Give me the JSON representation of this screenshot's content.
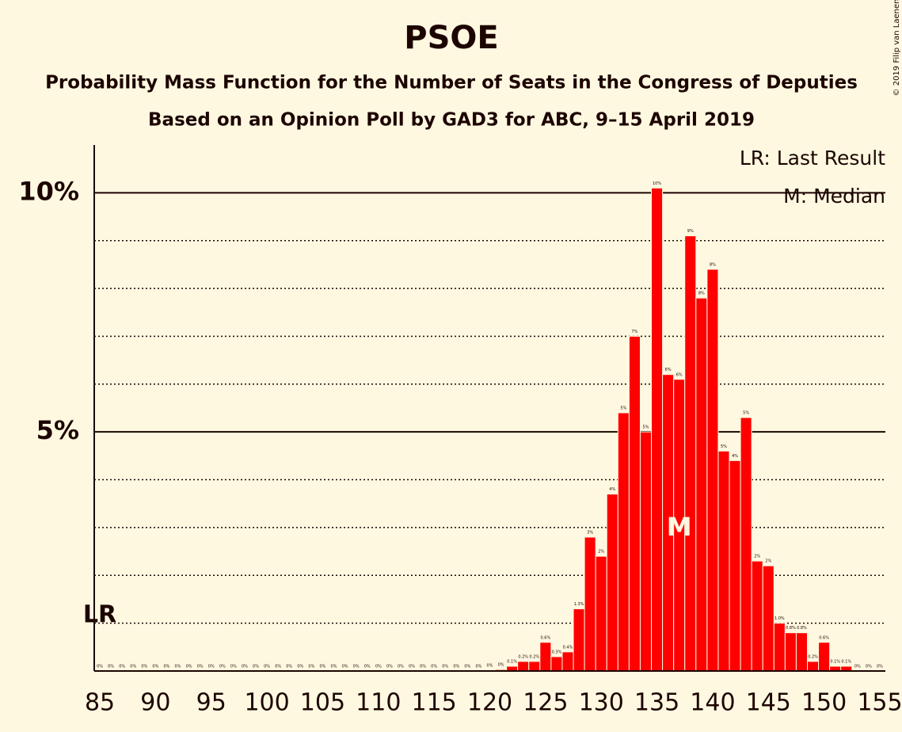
{
  "chart_data": {
    "type": "bar",
    "title": "PSOE",
    "subtitle": "Probability Mass Function for the Number of Seats in the Congress of Deputies",
    "subtitle2": "Based on an Opinion Poll by GAD3 for ABC, 9–15 April 2019",
    "copyright": "© 2019 Filip van Laenen",
    "legend": [
      "LR: Last Result",
      "M: Median"
    ],
    "legend_position": "top-right",
    "color": "#ff0000",
    "x": [
      85,
      86,
      87,
      88,
      89,
      90,
      91,
      92,
      93,
      94,
      95,
      96,
      97,
      98,
      99,
      100,
      101,
      102,
      103,
      104,
      105,
      106,
      107,
      108,
      109,
      110,
      111,
      112,
      113,
      114,
      115,
      116,
      117,
      118,
      119,
      120,
      121,
      122,
      123,
      124,
      125,
      126,
      127,
      128,
      129,
      130,
      131,
      132,
      133,
      134,
      135,
      136,
      137,
      138,
      139,
      140,
      141,
      142,
      143,
      144,
      145,
      146,
      147,
      148,
      149,
      150,
      151,
      152,
      153,
      154,
      155
    ],
    "values": [
      0,
      0,
      0,
      0,
      0,
      0,
      0,
      0,
      0,
      0,
      0,
      0,
      0,
      0,
      0,
      0,
      0,
      0,
      0,
      0,
      0,
      0,
      0,
      0,
      0,
      0,
      0,
      0,
      0,
      0,
      0,
      0,
      0,
      0,
      0,
      0.02,
      0.03,
      0.1,
      0.2,
      0.2,
      0.6,
      0.3,
      0.4,
      1.3,
      2.8,
      2.4,
      3.7,
      5.4,
      7.0,
      5.0,
      10.1,
      6.2,
      6.1,
      9.1,
      7.8,
      8.4,
      4.6,
      4.4,
      5.3,
      2.3,
      2.2,
      1.0,
      0.8,
      0.8,
      0.2,
      0.6,
      0.1,
      0.1,
      0,
      0,
      0
    ],
    "value_labels": [
      "0%",
      "0%",
      "0%",
      "0%",
      "0%",
      "0%",
      "0%",
      "0%",
      "0%",
      "0%",
      "0%",
      "0%",
      "0%",
      "0%",
      "0%",
      "0%",
      "0%",
      "0%",
      "0%",
      "0%",
      "0%",
      "0%",
      "0%",
      "0%",
      "0%",
      "0%",
      "0%",
      "0%",
      "0%",
      "0%",
      "0%",
      "0%",
      "0%",
      "0%",
      "0%",
      "0%",
      "0%",
      "0.1%",
      "0.2%",
      "0.2%",
      "0.6%",
      "0.3%",
      "0.4%",
      "1.3%",
      "3%",
      "2%",
      "4%",
      "5%",
      "7%",
      "5%",
      "10%",
      "6%",
      "6%",
      "9%",
      "8%",
      "8%",
      "5%",
      "4%",
      "5%",
      "2%",
      "2%",
      "1.0%",
      "0.8%",
      "0.8%",
      "0.2%",
      "0.6%",
      "0.1%",
      "0.1%",
      "0%",
      "0%",
      "0%"
    ],
    "last_result": 85,
    "last_result_label": "LR",
    "median": 137,
    "median_label": "M",
    "xlim": [
      84.5,
      155.5
    ],
    "xticks": [
      85,
      90,
      95,
      100,
      105,
      110,
      115,
      120,
      125,
      130,
      135,
      140,
      145,
      150,
      155
    ],
    "ylim": [
      0,
      11
    ],
    "yticks": [
      {
        "value": 5,
        "label": "5%"
      },
      {
        "value": 10,
        "label": "10%"
      }
    ],
    "minor_yticks": [
      1,
      2,
      3,
      4,
      6,
      7,
      8,
      9
    ]
  }
}
